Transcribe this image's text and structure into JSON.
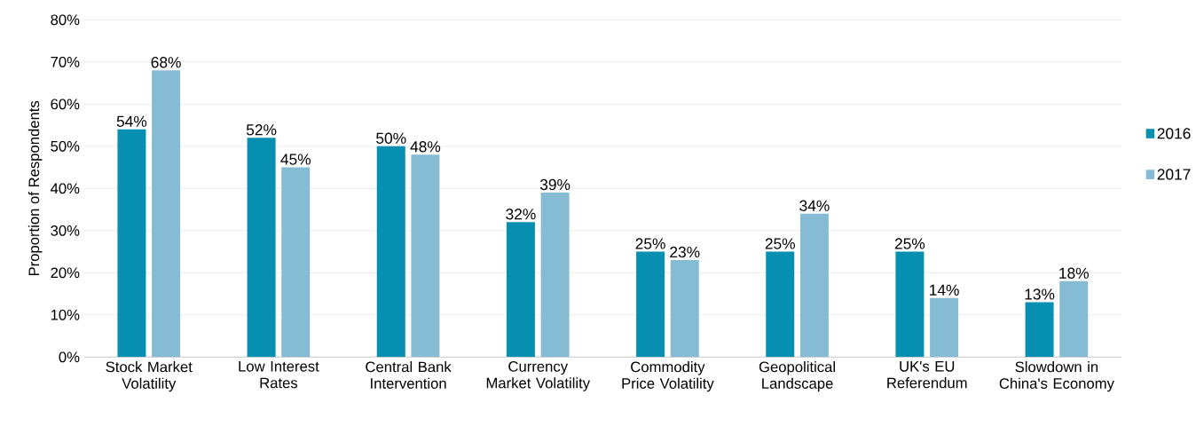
{
  "chart_data": {
    "type": "bar",
    "ylabel": "Proportion of Respondents",
    "categories": [
      "Stock Market Volatility",
      "Low Interest Rates",
      "Central Bank Intervention",
      "Currency Market Volatility",
      "Commodity Price Volatility",
      "Geopolitical Landscape",
      "UK's EU Referendum",
      "Slowdown in China's Economy"
    ],
    "series": [
      {
        "name": "2016",
        "color": "#068fb0",
        "values": [
          54,
          52,
          50,
          32,
          25,
          25,
          25,
          13
        ],
        "value_labels": [
          "54%",
          "52%",
          "50%",
          "32%",
          "25%",
          "25%",
          "25%",
          "13%"
        ]
      },
      {
        "name": "2017",
        "color": "#86bcd3",
        "values": [
          68,
          45,
          48,
          39,
          23,
          34,
          14,
          18
        ],
        "value_labels": [
          "68%",
          "45%",
          "48%",
          "39%",
          "23%",
          "34%",
          "14%",
          "18%"
        ]
      }
    ],
    "ylim": [
      0,
      80
    ],
    "yticks": [
      {
        "value": 0,
        "label": "0%"
      },
      {
        "value": 10,
        "label": "10%"
      },
      {
        "value": 20,
        "label": "20%"
      },
      {
        "value": 30,
        "label": "30%"
      },
      {
        "value": 40,
        "label": "40%"
      },
      {
        "value": 50,
        "label": "50%"
      },
      {
        "value": 60,
        "label": "60%"
      },
      {
        "value": 70,
        "label": "70%"
      },
      {
        "value": 80,
        "label": "80%"
      }
    ],
    "grid": "y",
    "legend": "right"
  }
}
